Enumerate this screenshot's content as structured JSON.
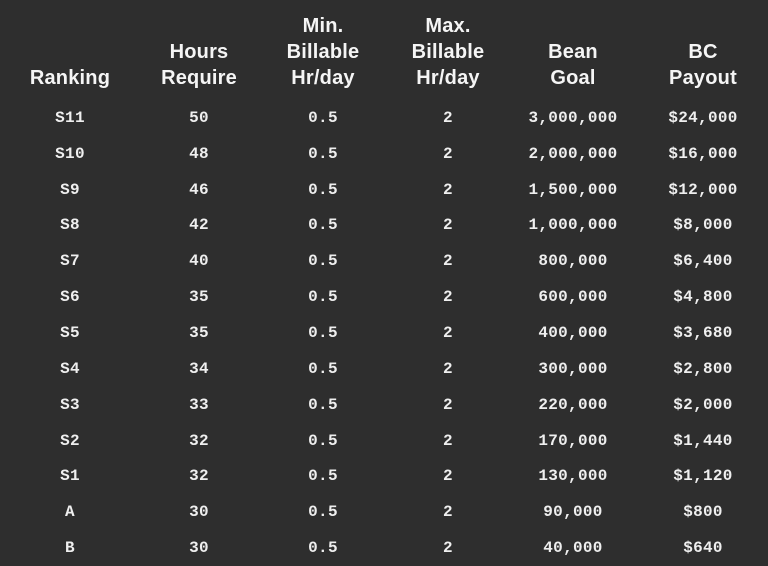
{
  "colors": {
    "background": "#2e2e2e",
    "header_text": "#f5f5f5",
    "body_text": "#efefef"
  },
  "chart_data": {
    "type": "table",
    "title": "",
    "columns": [
      {
        "label": "Ranking"
      },
      {
        "label": "Hours\nRequire"
      },
      {
        "label": "Min.\nBillable\nHr/day"
      },
      {
        "label": "Max.\nBillable\nHr/day"
      },
      {
        "label": "Bean\nGoal"
      },
      {
        "label": "BC\nPayout"
      }
    ],
    "rows": [
      [
        "S11",
        "50",
        "0.5",
        "2",
        "3,000,000",
        "$24,000"
      ],
      [
        "S10",
        "48",
        "0.5",
        "2",
        "2,000,000",
        "$16,000"
      ],
      [
        "S9",
        "46",
        "0.5",
        "2",
        "1,500,000",
        "$12,000"
      ],
      [
        "S8",
        "42",
        "0.5",
        "2",
        "1,000,000",
        "$8,000"
      ],
      [
        "S7",
        "40",
        "0.5",
        "2",
        "800,000",
        "$6,400"
      ],
      [
        "S6",
        "35",
        "0.5",
        "2",
        "600,000",
        "$4,800"
      ],
      [
        "S5",
        "35",
        "0.5",
        "2",
        "400,000",
        "$3,680"
      ],
      [
        "S4",
        "34",
        "0.5",
        "2",
        "300,000",
        "$2,800"
      ],
      [
        "S3",
        "33",
        "0.5",
        "2",
        "220,000",
        "$2,000"
      ],
      [
        "S2",
        "32",
        "0.5",
        "2",
        "170,000",
        "$1,440"
      ],
      [
        "S1",
        "32",
        "0.5",
        "2",
        "130,000",
        "$1,120"
      ],
      [
        "A",
        "30",
        "0.5",
        "2",
        "90,000",
        "$800"
      ],
      [
        "B",
        "30",
        "0.5",
        "2",
        "40,000",
        "$640"
      ]
    ]
  }
}
